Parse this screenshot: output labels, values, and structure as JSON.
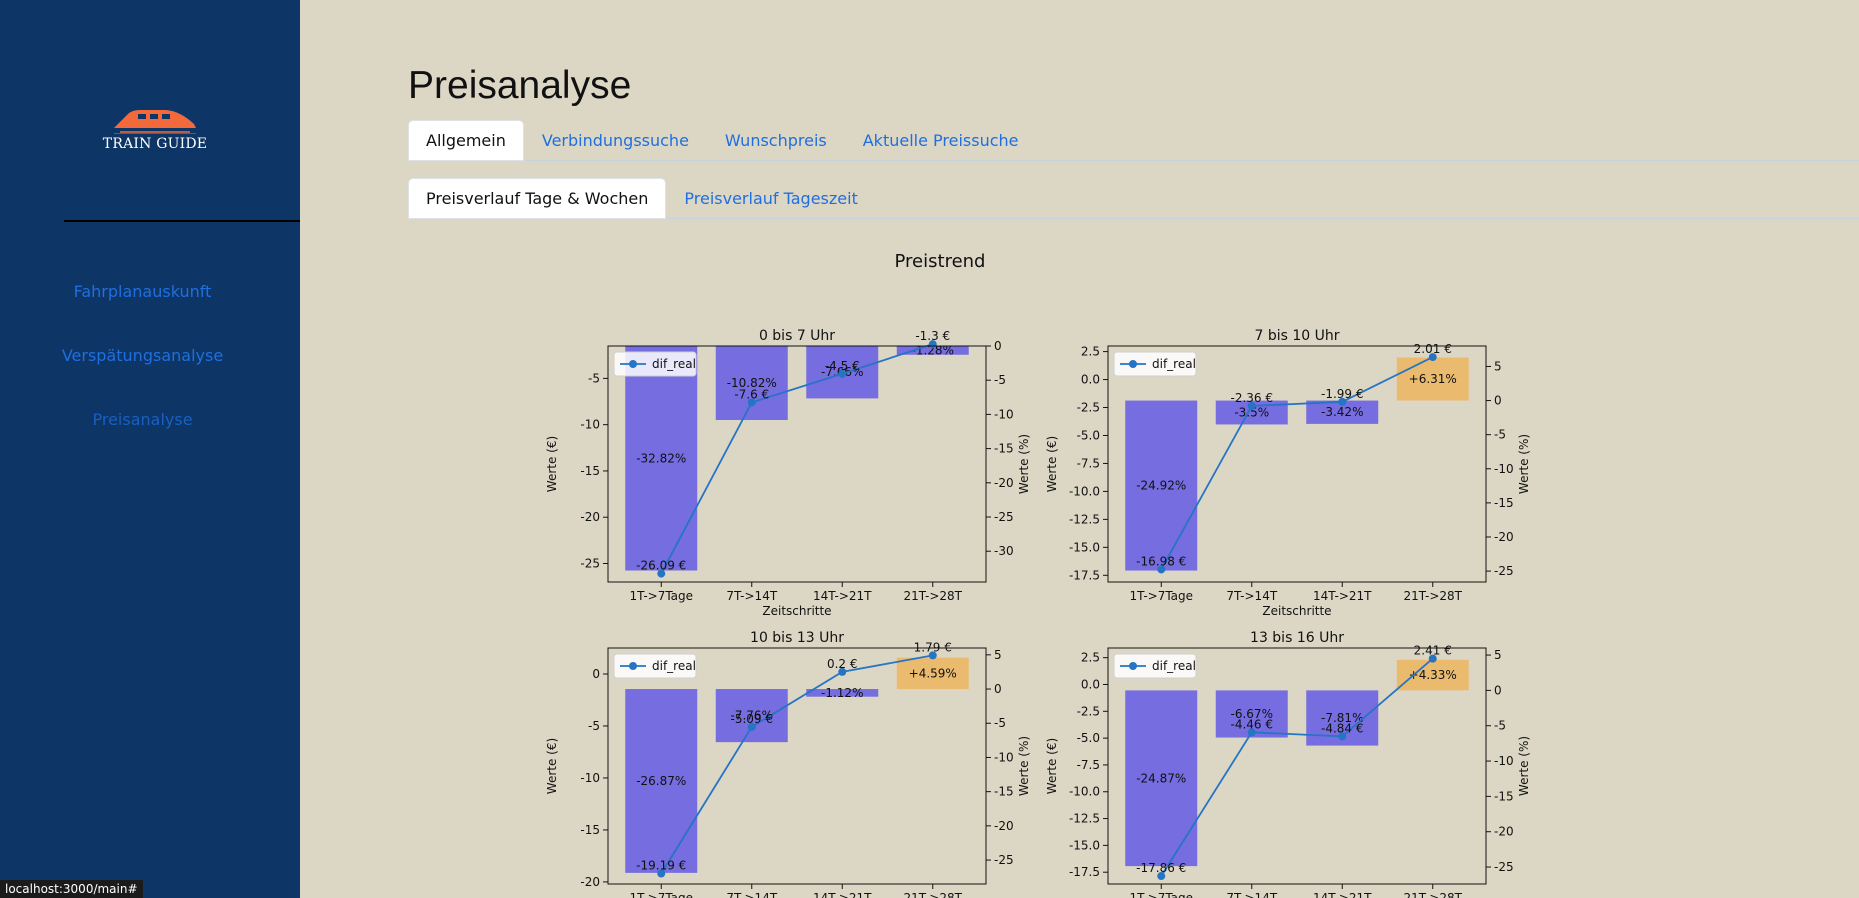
{
  "sidebar": {
    "logo_text": "TRAIN GUIDE",
    "items": [
      {
        "label": "Fahrplanauskunft"
      },
      {
        "label": "Verspätungsanalyse"
      },
      {
        "label": "Preisanalyse"
      }
    ]
  },
  "page": {
    "title": "Preisanalyse",
    "tabs": [
      {
        "label": "Allgemein"
      },
      {
        "label": "Verbindungssuche"
      },
      {
        "label": "Wunschpreis"
      },
      {
        "label": "Aktuelle Preissuche"
      }
    ],
    "subtabs": [
      {
        "label": "Preisverlauf Tage & Wochen"
      },
      {
        "label": "Preisverlauf Tageszeit"
      }
    ]
  },
  "status_bar": "localhost:3000/main#",
  "colors": {
    "sidebar_bg": "#0d3566",
    "page_bg": "#dcd7c5",
    "bar_negative": "#6f67e2",
    "bar_positive": "#eab96a",
    "line": "#2674c4",
    "link": "#1f6fe0"
  },
  "chart_data": {
    "suptitle": "Preistrend",
    "xlabel": "Zeitschritte",
    "ylabel_left": "Werte (€)",
    "ylabel_right": "Werte (%)",
    "legend": "dif_real",
    "categories": [
      "1T->7Tage",
      "7T->14T",
      "14T->21T",
      "21T->28T"
    ],
    "panels": [
      {
        "title": "0 bis 7 Uhr",
        "type": "bar+line",
        "y_left_ticks": [
          -5,
          -10,
          -15,
          -20,
          -25
        ],
        "y_left_lim": [
          -27,
          -1.5
        ],
        "y_right_ticks": [
          0,
          -5,
          -10,
          -15,
          -20,
          -25,
          -30
        ],
        "y_right_lim": [
          -34.5,
          0
        ],
        "bar_pct": [
          -32.82,
          -10.82,
          -7.66,
          -1.28
        ],
        "bar_pct_labels": [
          "-32.82%",
          "-10.82%",
          "-7.66%",
          "-1.28%"
        ],
        "line_eur": [
          -26.09,
          -7.6,
          -4.5,
          -1.3
        ],
        "line_eur_labels": [
          "-26.09 €",
          "-7.6 €",
          "-4.5 €",
          "-1.3 €"
        ]
      },
      {
        "title": "7 bis 10 Uhr",
        "type": "bar+line",
        "y_left_ticks": [
          2.5,
          0.0,
          -2.5,
          -5.0,
          -7.5,
          -10.0,
          -12.5,
          -15.0,
          -17.5
        ],
        "y_left_lim": [
          -18.1,
          3.0
        ],
        "y_right_ticks": [
          5,
          0,
          -5,
          -10,
          -15,
          -20,
          -25
        ],
        "y_right_lim": [
          -26.6,
          8
        ],
        "bar_pct": [
          -24.92,
          -3.5,
          -3.42,
          6.31
        ],
        "bar_pct_labels": [
          "-24.92%",
          "-3.5%",
          "-3.42%",
          "+6.31%"
        ],
        "line_eur": [
          -16.98,
          -2.36,
          -1.99,
          2.01
        ],
        "line_eur_labels": [
          "-16.98 €",
          "-2.36 €",
          "-1.99 €",
          "2.01 €"
        ]
      },
      {
        "title": "10 bis 13 Uhr",
        "type": "bar+line",
        "y_left_ticks": [
          0,
          -5,
          -10,
          -15,
          -20
        ],
        "y_left_lim": [
          -20.2,
          2.5
        ],
        "y_right_ticks": [
          5,
          0,
          -5,
          -10,
          -15,
          -20,
          -25
        ],
        "y_right_lim": [
          -28.5,
          6
        ],
        "bar_pct": [
          -26.87,
          -7.76,
          -1.12,
          4.59
        ],
        "bar_pct_labels": [
          "-26.87%",
          "-7.76%",
          "-1.12%",
          "+4.59%"
        ],
        "line_eur": [
          -19.19,
          -5.09,
          0.2,
          1.79
        ],
        "line_eur_labels": [
          "-19.19 €",
          "-5.09 €",
          "0.2 €",
          "1.79 €"
        ]
      },
      {
        "title": "13 bis 16 Uhr",
        "type": "bar+line",
        "y_left_ticks": [
          2.5,
          0.0,
          -2.5,
          -5.0,
          -7.5,
          -10.0,
          -12.5,
          -15.0,
          -17.5
        ],
        "y_left_lim": [
          -18.6,
          3.4
        ],
        "y_right_ticks": [
          5,
          0,
          -5,
          -10,
          -15,
          -20,
          -25
        ],
        "y_right_lim": [
          -27.4,
          6
        ],
        "bar_pct": [
          -24.87,
          -6.67,
          -7.81,
          4.33
        ],
        "bar_pct_labels": [
          "-24.87%",
          "-6.67%",
          "-7.81%",
          "+4.33%"
        ],
        "line_eur": [
          -17.86,
          -4.46,
          -4.84,
          2.41
        ],
        "line_eur_labels": [
          "-17.86 €",
          "-4.46 €",
          "-4.84 €",
          "2.41 €"
        ]
      }
    ]
  }
}
